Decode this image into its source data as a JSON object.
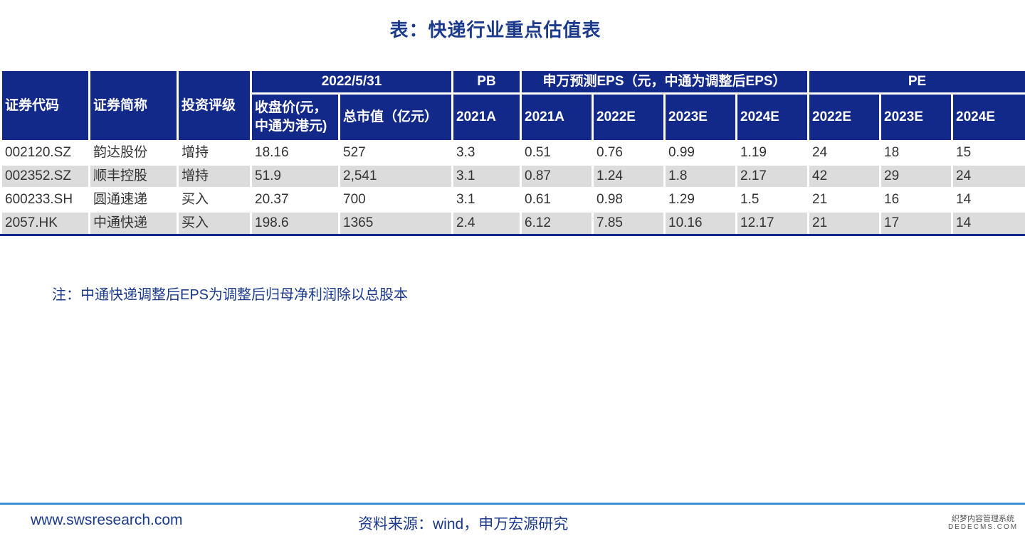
{
  "title": "表：快递行业重点估值表",
  "table": {
    "headers": {
      "code": "证券代码",
      "name": "证券简称",
      "rating": "投资评级",
      "date_group": "2022/5/31",
      "price": "收盘价(元，中通为港元)",
      "mktcap": "总市值（亿元）",
      "pb_group": "PB",
      "pb_2021a": "2021A",
      "eps_group": "申万预测EPS（元，中通为调整后EPS）",
      "eps_2021a": "2021A",
      "eps_2022e": "2022E",
      "eps_2023e": "2023E",
      "eps_2024e": "2024E",
      "pe_group": "PE",
      "pe_2022e": "2022E",
      "pe_2023e": "2023E",
      "pe_2024e": "2024E"
    },
    "rows": [
      [
        "002120.SZ",
        "韵达股份",
        "增持",
        "18.16",
        "527",
        "3.3",
        "0.51",
        "0.76",
        "0.99",
        "1.19",
        "24",
        "18",
        "15"
      ],
      [
        "002352.SZ",
        "顺丰控股",
        "增持",
        "51.9",
        "2,541",
        "3.1",
        "0.87",
        "1.24",
        "1.8",
        "2.17",
        "42",
        "29",
        "24"
      ],
      [
        "600233.SH",
        "圆通速递",
        "买入",
        "20.37",
        "700",
        "3.1",
        "0.61",
        "0.98",
        "1.29",
        "1.5",
        "21",
        "16",
        "14"
      ],
      [
        "2057.HK",
        "中通快递",
        "买入",
        "198.6",
        "1365",
        "2.4",
        "6.12",
        "7.85",
        "10.16",
        "12.17",
        "21",
        "17",
        "14"
      ]
    ]
  },
  "note": "注：中通快递调整后EPS为调整后归母净利润除以总股本",
  "footer": {
    "website": "www.swsresearch.com",
    "source": "资料来源：wind，申万宏源研究"
  },
  "watermark": {
    "line1": "织梦内容管理系统",
    "line2": "DEDECMS.COM"
  },
  "colors": {
    "header_bg": "#12298a",
    "title_text": "#1b3a8c",
    "alt_row_bg": "#dcdcdc",
    "footer_line": "#3a8fd6"
  }
}
